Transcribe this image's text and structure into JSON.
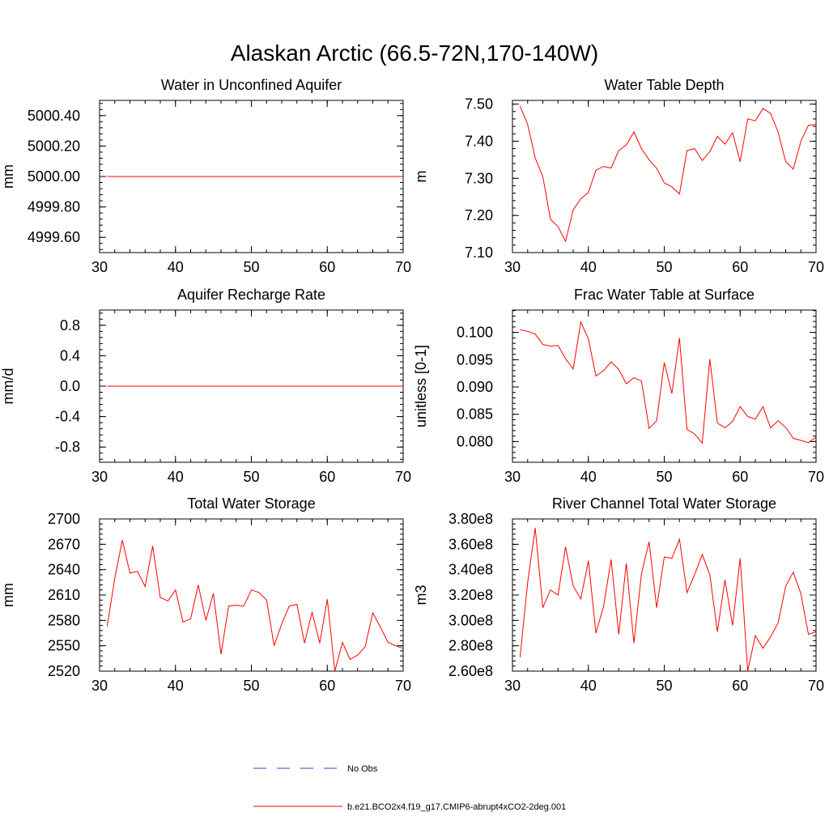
{
  "figure": {
    "title": "Alaskan Arctic (66.5-72N,170-140W)"
  },
  "colors": {
    "model": "#ff0000",
    "obs": "#3b3bd6",
    "axis": "#000000"
  },
  "legend": {
    "placement": "bottom-center",
    "entries": [
      {
        "label": "No Obs",
        "style": "dashed",
        "color": "#3b3bd6"
      },
      {
        "label": "b.e21.BCO2x4.f19_g17.CMIP6-abrupt4xCO2-2deg.001",
        "style": "solid",
        "color": "#ff0000"
      }
    ]
  },
  "chart_data": [
    {
      "type": "line",
      "title": "Water in Unconfined Aquifer",
      "ylabel": "mm",
      "xlim": [
        30,
        70
      ],
      "ylim": [
        4999.5,
        5000.5
      ],
      "xticks": [
        30,
        40,
        50,
        60,
        70
      ],
      "xtick_labels": [
        "30",
        "40",
        "50",
        "60",
        "70"
      ],
      "yticks": [
        4999.6,
        4999.8,
        5000.0,
        5000.2,
        5000.4
      ],
      "ytick_labels": [
        "4999.60",
        "4999.80",
        "5000.00",
        "5000.20",
        "5000.40"
      ],
      "grid": false,
      "x": [
        31,
        70
      ],
      "series": [
        {
          "values": [
            5000.0,
            5000.0
          ]
        }
      ]
    },
    {
      "type": "line",
      "title": "Water Table Depth",
      "ylabel": "m",
      "xlim": [
        30,
        70
      ],
      "ylim": [
        7.1,
        7.51
      ],
      "xticks": [
        30,
        40,
        50,
        60,
        70
      ],
      "xtick_labels": [
        "30",
        "40",
        "50",
        "60",
        "70"
      ],
      "yticks": [
        7.1,
        7.2,
        7.3,
        7.4,
        7.5
      ],
      "ytick_labels": [
        "7.10",
        "7.20",
        "7.30",
        "7.40",
        "7.50"
      ],
      "grid": false,
      "x": [
        31,
        32,
        33,
        34,
        35,
        36,
        37,
        38,
        39,
        40,
        41,
        42,
        43,
        44,
        45,
        46,
        47,
        48,
        49,
        50,
        51,
        52,
        53,
        54,
        55,
        56,
        57,
        58,
        59,
        60,
        61,
        62,
        63,
        64,
        65,
        66,
        67,
        68,
        69,
        70
      ],
      "series": [
        {
          "values": [
            7.495,
            7.445,
            7.355,
            7.305,
            7.19,
            7.17,
            7.13,
            7.215,
            7.245,
            7.262,
            7.322,
            7.332,
            7.328,
            7.375,
            7.39,
            7.425,
            7.38,
            7.35,
            7.327,
            7.288,
            7.277,
            7.258,
            7.375,
            7.38,
            7.348,
            7.372,
            7.413,
            7.392,
            7.423,
            7.345,
            7.46,
            7.455,
            7.488,
            7.475,
            7.425,
            7.345,
            7.325,
            7.4,
            7.443,
            7.445
          ]
        }
      ]
    },
    {
      "type": "line",
      "title": "Aquifer Recharge Rate",
      "ylabel": "mm/d",
      "xlim": [
        30,
        70
      ],
      "ylim": [
        -1.0,
        1.0
      ],
      "xticks": [
        30,
        40,
        50,
        60,
        70
      ],
      "xtick_labels": [
        "30",
        "40",
        "50",
        "60",
        "70"
      ],
      "yticks": [
        -0.8,
        -0.4,
        0.0,
        0.4,
        0.8
      ],
      "ytick_labels": [
        "-0.8",
        "-0.4",
        "0.0",
        "0.4",
        "0.8"
      ],
      "grid": false,
      "x": [
        31,
        70
      ],
      "series": [
        {
          "values": [
            0.0,
            0.0
          ]
        }
      ]
    },
    {
      "type": "line",
      "title": "Frac Water Table at Surface",
      "ylabel": "unitless [0-1]",
      "xlim": [
        30,
        70
      ],
      "ylim": [
        0.0762,
        0.1041
      ],
      "xticks": [
        30,
        40,
        50,
        60,
        70
      ],
      "xtick_labels": [
        "30",
        "40",
        "50",
        "60",
        "70"
      ],
      "yticks": [
        0.08,
        0.085,
        0.09,
        0.095,
        0.1
      ],
      "ytick_labels": [
        "0.080",
        "0.085",
        "0.090",
        "0.095",
        "0.100"
      ],
      "grid": false,
      "x": [
        31,
        32,
        33,
        34,
        35,
        36,
        37,
        38,
        39,
        40,
        41,
        42,
        43,
        44,
        45,
        46,
        47,
        48,
        49,
        50,
        51,
        52,
        53,
        54,
        55,
        56,
        57,
        58,
        59,
        60,
        61,
        62,
        63,
        64,
        65,
        66,
        67,
        68,
        69,
        70
      ],
      "series": [
        {
          "values": [
            0.1005,
            0.1002,
            0.0997,
            0.0978,
            0.0975,
            0.0976,
            0.0952,
            0.0933,
            0.1019,
            0.0988,
            0.092,
            0.093,
            0.0946,
            0.0932,
            0.0906,
            0.0917,
            0.0911,
            0.0824,
            0.0838,
            0.0945,
            0.0888,
            0.099,
            0.0822,
            0.0814,
            0.0797,
            0.0951,
            0.0834,
            0.0825,
            0.0837,
            0.0864,
            0.0846,
            0.0841,
            0.0864,
            0.0825,
            0.0838,
            0.0826,
            0.0806,
            0.0802,
            0.0798,
            0.0808
          ]
        }
      ]
    },
    {
      "type": "line",
      "title": "Total Water Storage",
      "ylabel": "mm",
      "xlim": [
        30,
        70
      ],
      "ylim": [
        2520,
        2700
      ],
      "xticks": [
        30,
        40,
        50,
        60,
        70
      ],
      "xtick_labels": [
        "30",
        "40",
        "50",
        "60",
        "70"
      ],
      "yticks": [
        2520,
        2550,
        2580,
        2610,
        2640,
        2670,
        2700
      ],
      "ytick_labels": [
        "2520",
        "2550",
        "2580",
        "2610",
        "2640",
        "2670",
        "2700"
      ],
      "grid": false,
      "x": [
        31,
        32,
        33,
        34,
        35,
        36,
        37,
        38,
        39,
        40,
        41,
        42,
        43,
        44,
        45,
        46,
        47,
        48,
        49,
        50,
        51,
        52,
        53,
        54,
        55,
        56,
        57,
        58,
        59,
        60,
        61,
        62,
        63,
        64,
        65,
        66,
        67,
        68,
        69,
        70
      ],
      "series": [
        {
          "values": [
            2573,
            2630,
            2675,
            2636,
            2638,
            2620,
            2668,
            2607,
            2603,
            2616,
            2578,
            2582,
            2622,
            2580,
            2612,
            2540,
            2597,
            2598,
            2597,
            2616,
            2613,
            2604,
            2550,
            2576,
            2597,
            2599,
            2553,
            2590,
            2553,
            2605,
            2520,
            2554,
            2534,
            2539,
            2549,
            2589,
            2572,
            2554,
            2550,
            2547
          ]
        }
      ]
    },
    {
      "type": "line",
      "title": "River Channel Total Water Storage",
      "ylabel": "m3",
      "xlim": [
        30,
        70
      ],
      "ylim": [
        260000000,
        380000000
      ],
      "xticks": [
        30,
        40,
        50,
        60,
        70
      ],
      "xtick_labels": [
        "30",
        "40",
        "50",
        "60",
        "70"
      ],
      "yticks": [
        260000000,
        280000000,
        300000000,
        320000000,
        340000000,
        360000000,
        380000000
      ],
      "ytick_labels": [
        "2.60e8",
        "2.80e8",
        "3.00e8",
        "3.20e8",
        "3.40e8",
        "3.60e8",
        "3.80e8"
      ],
      "grid": false,
      "x": [
        31,
        32,
        33,
        34,
        35,
        36,
        37,
        38,
        39,
        40,
        41,
        42,
        43,
        44,
        45,
        46,
        47,
        48,
        49,
        50,
        51,
        52,
        53,
        54,
        55,
        56,
        57,
        58,
        59,
        60,
        61,
        62,
        63,
        64,
        65,
        66,
        67,
        68,
        69,
        70
      ],
      "series": [
        {
          "values": [
            271000000,
            330000000,
            373000000,
            310000000,
            324000000,
            320000000,
            358000000,
            327000000,
            317000000,
            347000000,
            290000000,
            311000000,
            348000000,
            289000000,
            345000000,
            282000000,
            337000000,
            362000000,
            310000000,
            350000000,
            349000000,
            364000000,
            322000000,
            336000000,
            352000000,
            336000000,
            291000000,
            332000000,
            296000000,
            349000000,
            260000000,
            288000000,
            278000000,
            287000000,
            298000000,
            327000000,
            338000000,
            321000000,
            289000000,
            291000000
          ]
        }
      ]
    }
  ]
}
